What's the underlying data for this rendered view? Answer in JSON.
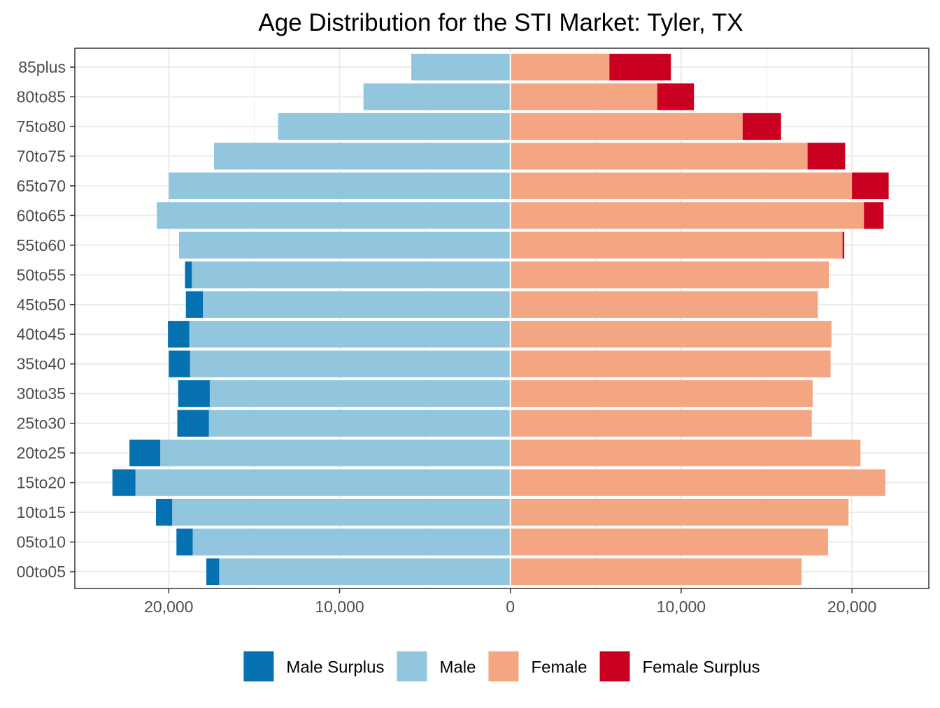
{
  "chart_data": {
    "type": "bar",
    "orientation": "horizontal",
    "layout": "population-pyramid",
    "title": "Age Distribution for the STI Market: Tyler, TX",
    "xlabel": "",
    "ylabel": "",
    "xlim": [
      -25500,
      24500
    ],
    "x_ticks": [
      -20000,
      -10000,
      0,
      10000,
      20000
    ],
    "x_tick_labels": [
      "20,000",
      "10,000",
      "0",
      "10,000",
      "20,000"
    ],
    "grid": true,
    "legend_position": "bottom",
    "categories": [
      "00to05",
      "05to10",
      "10to15",
      "15to20",
      "20to25",
      "25to30",
      "30to35",
      "35to40",
      "40to45",
      "45to50",
      "50to55",
      "55to60",
      "60to65",
      "65to70",
      "70to75",
      "75to80",
      "80to85",
      "85plus"
    ],
    "series": [
      {
        "name": "Male Surplus",
        "color": "#0571b0",
        "side": "left",
        "values": [
          750,
          950,
          950,
          1350,
          1800,
          1850,
          1850,
          1250,
          1250,
          1000,
          400,
          0,
          0,
          0,
          0,
          0,
          0,
          0
        ]
      },
      {
        "name": "Male",
        "color": "#92c5de",
        "side": "left",
        "values": [
          17050,
          18600,
          19800,
          21950,
          20500,
          17650,
          17600,
          18750,
          18800,
          18000,
          18650,
          19400,
          20700,
          20000,
          17350,
          13600,
          8600,
          5800
        ]
      },
      {
        "name": "Female",
        "color": "#f4a582",
        "side": "right",
        "values": [
          17050,
          18600,
          19800,
          21950,
          20500,
          17650,
          17700,
          18750,
          18800,
          18000,
          18650,
          19450,
          20700,
          20000,
          17400,
          13600,
          8600,
          5800
        ]
      },
      {
        "name": "Female Surplus",
        "color": "#ca0020",
        "side": "right",
        "values": [
          0,
          0,
          0,
          0,
          0,
          0,
          0,
          0,
          0,
          0,
          0,
          100,
          1150,
          2150,
          2200,
          2250,
          2150,
          3600
        ]
      }
    ],
    "legend_order": [
      "Male Surplus",
      "Male",
      "Female",
      "Female Surplus"
    ]
  }
}
